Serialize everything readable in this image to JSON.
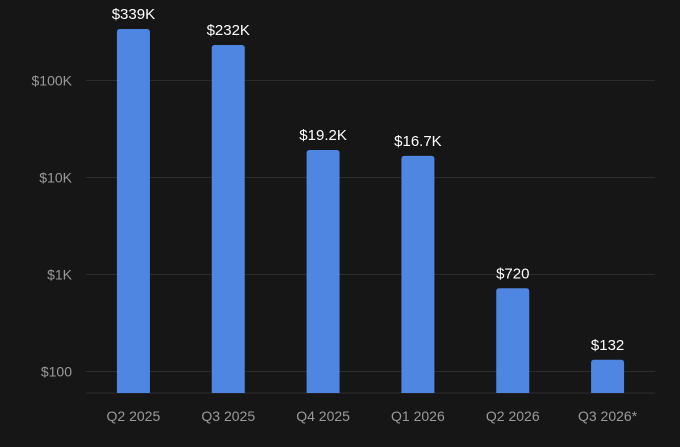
{
  "chart_data": {
    "type": "bar",
    "title": "",
    "xlabel": "",
    "ylabel": "",
    "y_scale": "log",
    "ylim": [
      60,
      420000
    ],
    "y_ticks": [
      {
        "value": 100,
        "label": "$100"
      },
      {
        "value": 1000,
        "label": "$1K"
      },
      {
        "value": 10000,
        "label": "$10K"
      },
      {
        "value": 100000,
        "label": "$100K"
      }
    ],
    "grid": true,
    "legend": "none",
    "categories": [
      "Q2 2025",
      "Q3 2025",
      "Q4 2025",
      "Q1 2026",
      "Q2 2026",
      "Q3 2026*"
    ],
    "values": [
      339000,
      232000,
      19200,
      16700,
      720,
      132
    ],
    "data_labels": [
      "$339K",
      "$232K",
      "$19.2K",
      "$16.7K",
      "$720",
      "$132"
    ],
    "colors": {
      "bar": "#4f86e1",
      "background": "#161616",
      "grid": "#2c2c2c",
      "tick_text": "#9a9a9a",
      "label_text": "#ffffff"
    }
  }
}
